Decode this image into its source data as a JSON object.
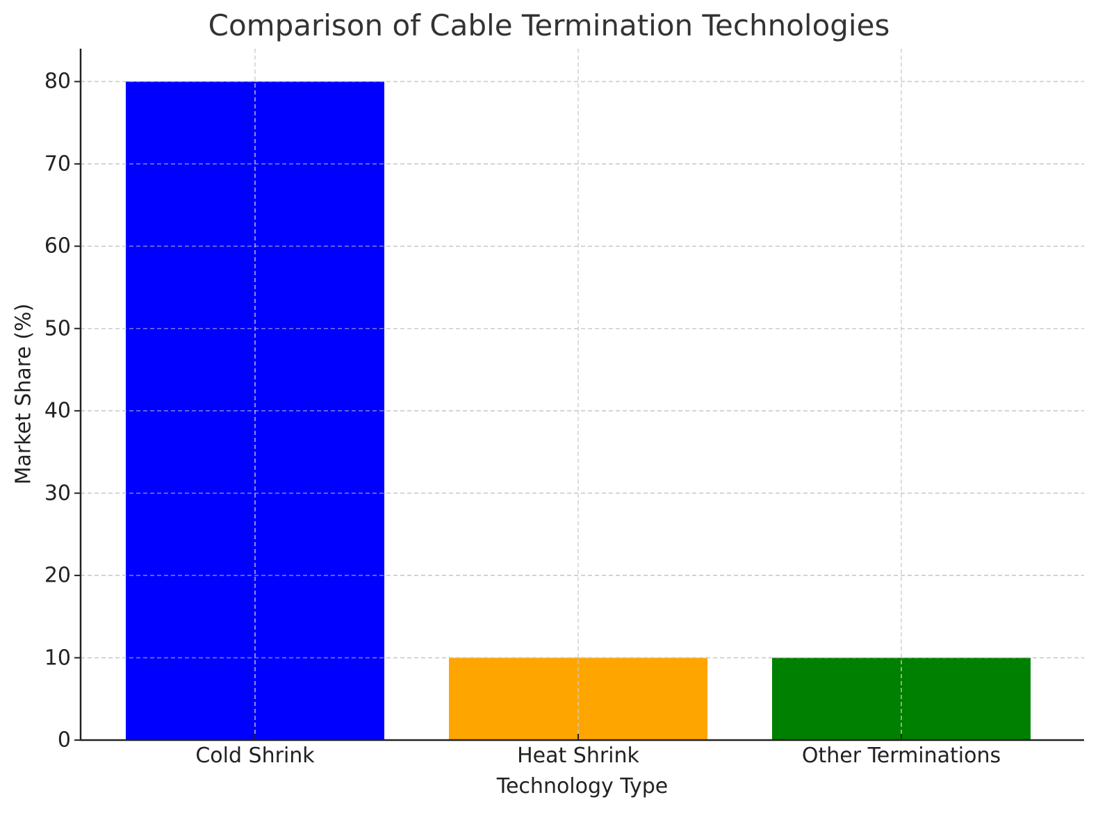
{
  "chart_data": {
    "type": "bar",
    "title": "Comparison of Cable Termination Technologies",
    "xlabel": "Technology Type",
    "ylabel": "Market Share (%)",
    "categories": [
      "Cold Shrink",
      "Heat Shrink",
      "Other Terminations"
    ],
    "values": [
      80,
      10,
      10
    ],
    "colors": [
      "#0000ff",
      "#ffa500",
      "#008000"
    ],
    "ylim": [
      0,
      84
    ],
    "yticks": [
      0,
      10,
      20,
      30,
      40,
      50,
      60,
      70,
      80
    ],
    "grid": true,
    "grid_style": "dashed",
    "grid_color": "#cccccc",
    "legend": null
  }
}
